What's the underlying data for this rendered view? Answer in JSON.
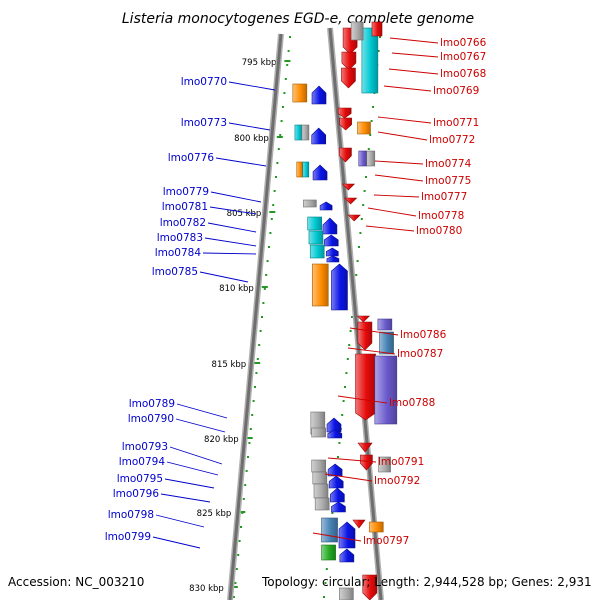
{
  "title": "Listeria monocytogenes EGD-e, complete genome",
  "accession": "Accession: NC_003210",
  "topology": "Topology: circular; Length: 2,944,528 bp; Genes: 2,931",
  "colors": {
    "backbone": "#8c8c8c",
    "forward_label": "#0000cc",
    "reverse_label": "#cc0000",
    "tick": "#229922",
    "blue": "#0a14e6",
    "red": "#e60a0a",
    "orange": "#ff8c00",
    "cyan": "#00c8d2",
    "gray": "#aaaaaa",
    "steel": "#4682b4",
    "purple": "#6a5acd",
    "green": "#22aa22"
  },
  "kbp_marks": [
    "795 kbp",
    "800 kbp",
    "805 kbp",
    "810 kbp",
    "815 kbp",
    "820 kbp",
    "825 kbp",
    "830 kbp"
  ],
  "forward_labels": [
    "lmo0770",
    "lmo0773",
    "lmo0776",
    "lmo0779",
    "lmo0781",
    "lmo0782",
    "lmo0783",
    "lmo0784",
    "lmo0785",
    "lmo0789",
    "lmo0790",
    "lmo0793",
    "lmo0794",
    "lmo0795",
    "lmo0796",
    "lmo0798",
    "lmo0799"
  ],
  "reverse_labels": [
    "lmo0766",
    "lmo0767",
    "lmo0768",
    "lmo0769",
    "lmo0771",
    "lmo0772",
    "lmo0774",
    "lmo0775",
    "lmo0777",
    "lmo0778",
    "lmo0780",
    "lmo0786",
    "lmo0787",
    "lmo0788",
    "lmo0791",
    "lmo0792",
    "lmo0797"
  ]
}
